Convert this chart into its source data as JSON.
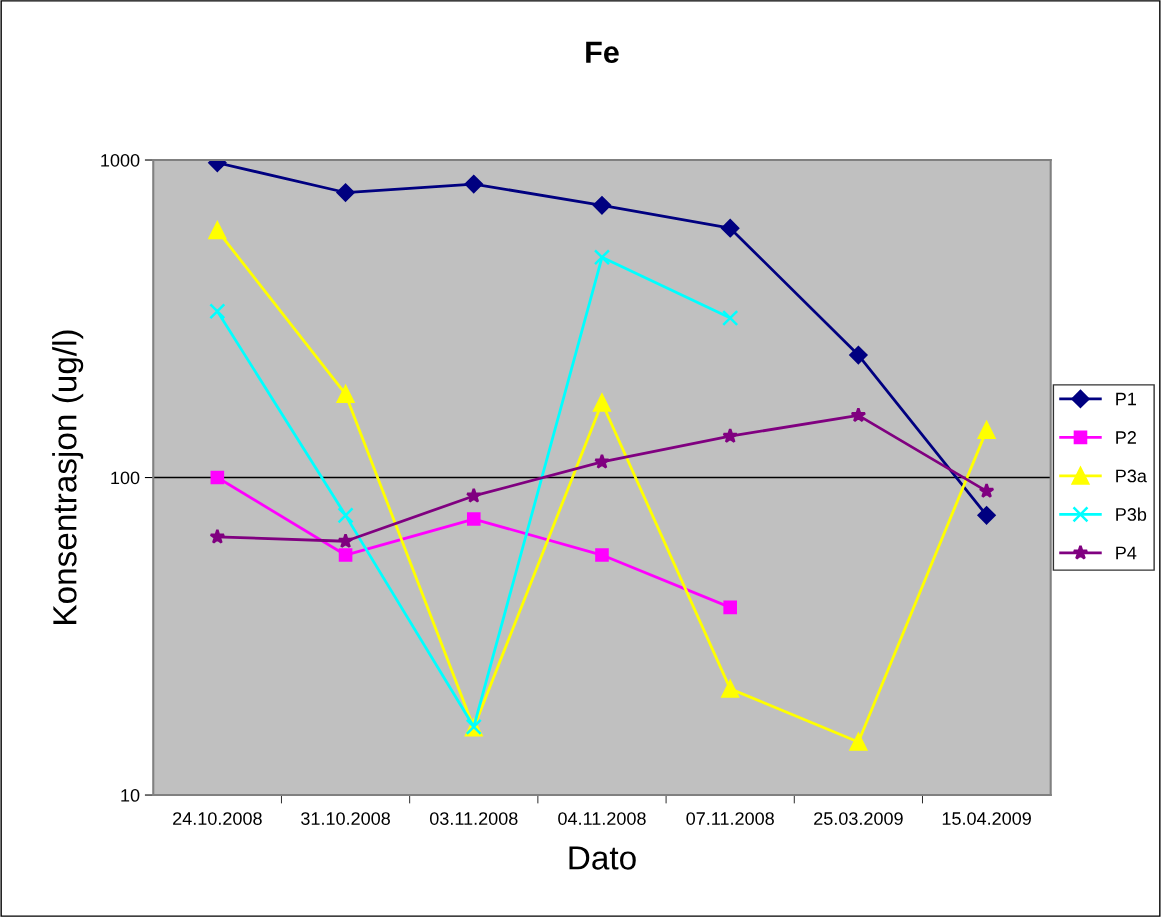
{
  "chart_data": {
    "type": "line",
    "title": "Fe",
    "xlabel": "Dato",
    "ylabel": "Konsentrasjon (ug/l)",
    "categories": [
      "24.10.2008",
      "31.10.2008",
      "03.11.2008",
      "04.11.2008",
      "07.11.2008",
      "25.03.2009",
      "15.04.2009"
    ],
    "series": [
      {
        "name": "P1",
        "color": "#000080",
        "marker": "diamond",
        "values": [
          980,
          790,
          840,
          720,
          610,
          243,
          76
        ]
      },
      {
        "name": "P2",
        "color": "#ff00ff",
        "marker": "square",
        "values": [
          100,
          57,
          74,
          57,
          39,
          null,
          null
        ]
      },
      {
        "name": "P3a",
        "color": "#ffff00",
        "marker": "triangle",
        "values": [
          600,
          183,
          16.3,
          172,
          21.6,
          14.7,
          141
        ]
      },
      {
        "name": "P3b",
        "color": "#00ffff",
        "marker": "cross",
        "values": [
          334,
          76,
          16.4,
          494,
          318,
          null,
          null
        ]
      },
      {
        "name": "P4",
        "color": "#800080",
        "marker": "star",
        "values": [
          65,
          63,
          87.5,
          112,
          135,
          157,
          90.6
        ]
      }
    ],
    "log": "y",
    "ylim": [
      10,
      1000
    ],
    "yticks": [
      10,
      100,
      1000
    ],
    "grid": "y",
    "legend": "right",
    "line_style": "solid"
  }
}
